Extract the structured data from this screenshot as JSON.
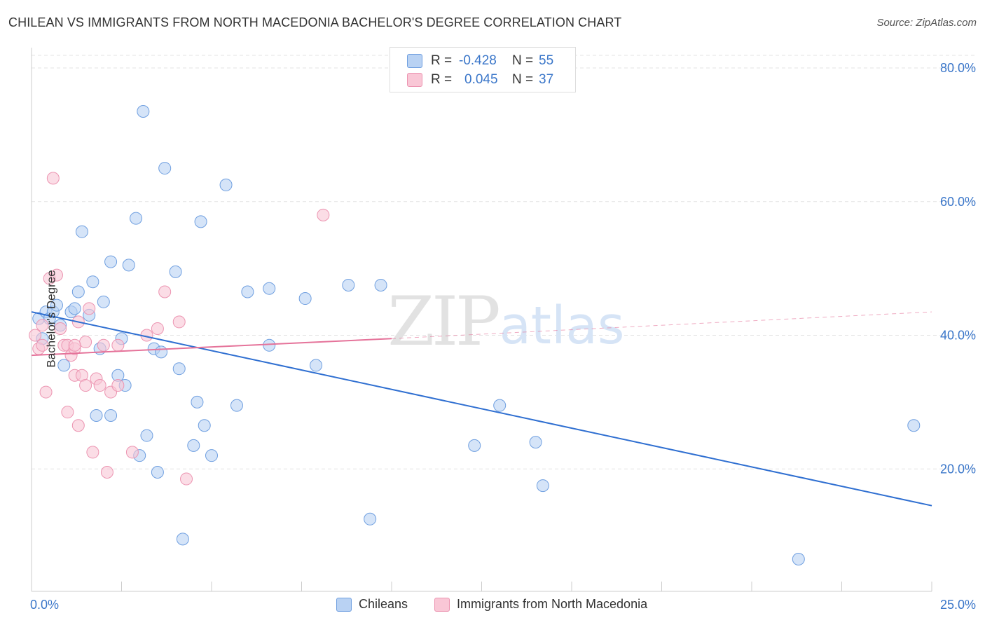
{
  "header": {
    "title": "CHILEAN VS IMMIGRANTS FROM NORTH MACEDONIA BACHELOR'S DEGREE CORRELATION CHART",
    "source": "Source: ZipAtlas.com"
  },
  "watermark": {
    "zip": "ZIP",
    "atlas": "atlas"
  },
  "legend": {
    "rows": [
      {
        "r_label": "R =",
        "r_value": "-0.428",
        "n_label": "N =",
        "n_value": "55",
        "fill": "#b9d2f3",
        "stroke": "#6f9fe0"
      },
      {
        "r_label": "R =",
        "r_value": "0.045",
        "n_label": "N =",
        "n_value": "37",
        "fill": "#f9c7d6",
        "stroke": "#ec94b1"
      }
    ]
  },
  "chart_data": {
    "type": "scatter",
    "title": "CHILEAN VS IMMIGRANTS FROM NORTH MACEDONIA BACHELOR'S DEGREE CORRELATION CHART",
    "xlabel": "",
    "ylabel": "Bachelor's Degree",
    "xlim": [
      0,
      25
    ],
    "ylim": [
      0,
      82
    ],
    "x_tick_labels": [
      "0.0%",
      "25.0%"
    ],
    "y_ticks": [
      20,
      40,
      60,
      80
    ],
    "y_tick_labels": [
      "20.0%",
      "40.0%",
      "60.0%",
      "80.0%"
    ],
    "grid": true,
    "legend_position": "top-center",
    "series": [
      {
        "name": "Chileans",
        "color": "#6f9fe0",
        "fill": "#b9d2f3",
        "points": [
          [
            0.2,
            42.5
          ],
          [
            0.3,
            39.5
          ],
          [
            0.4,
            43.5
          ],
          [
            0.5,
            42.5
          ],
          [
            0.6,
            43.5
          ],
          [
            0.7,
            44.5
          ],
          [
            0.8,
            41.5
          ],
          [
            0.9,
            35.5
          ],
          [
            1.1,
            43.5
          ],
          [
            1.2,
            44
          ],
          [
            1.3,
            46.5
          ],
          [
            1.4,
            55.5
          ],
          [
            1.6,
            43
          ],
          [
            1.7,
            48
          ],
          [
            1.8,
            28
          ],
          [
            1.9,
            38
          ],
          [
            2.0,
            45
          ],
          [
            2.2,
            51
          ],
          [
            2.2,
            28
          ],
          [
            2.4,
            34
          ],
          [
            2.5,
            39.5
          ],
          [
            2.6,
            32.5
          ],
          [
            2.7,
            50.5
          ],
          [
            2.9,
            57.5
          ],
          [
            3.0,
            22
          ],
          [
            3.1,
            73.5
          ],
          [
            3.2,
            25
          ],
          [
            3.4,
            38
          ],
          [
            3.5,
            19.5
          ],
          [
            3.6,
            37.5
          ],
          [
            3.7,
            65
          ],
          [
            4.0,
            49.5
          ],
          [
            4.1,
            35
          ],
          [
            4.2,
            9.5
          ],
          [
            4.5,
            23.5
          ],
          [
            4.6,
            30
          ],
          [
            4.7,
            57
          ],
          [
            4.8,
            26.5
          ],
          [
            5.0,
            22
          ],
          [
            5.4,
            62.5
          ],
          [
            5.7,
            29.5
          ],
          [
            6.0,
            46.5
          ],
          [
            6.6,
            47
          ],
          [
            6.6,
            38.5
          ],
          [
            7.6,
            45.5
          ],
          [
            7.9,
            35.5
          ],
          [
            8.8,
            47.5
          ],
          [
            9.4,
            12.5
          ],
          [
            9.7,
            47.5
          ],
          [
            12.3,
            23.5
          ],
          [
            13.0,
            29.5
          ],
          [
            14.0,
            24
          ],
          [
            14.2,
            17.5
          ],
          [
            21.3,
            6.5
          ],
          [
            24.5,
            26.5
          ]
        ],
        "trend": {
          "x": [
            0,
            25
          ],
          "y": [
            43.5,
            14.5
          ],
          "style": "solid"
        }
      },
      {
        "name": "Immigrants from North Macedonia",
        "color": "#ec94b1",
        "fill": "#f9c7d6",
        "points": [
          [
            0.1,
            40
          ],
          [
            0.2,
            38
          ],
          [
            0.3,
            41.5
          ],
          [
            0.4,
            31.5
          ],
          [
            0.5,
            48.5
          ],
          [
            0.6,
            63.5
          ],
          [
            0.7,
            49
          ],
          [
            0.8,
            41
          ],
          [
            0.9,
            38.5
          ],
          [
            1.0,
            28.5
          ],
          [
            1.0,
            38.5
          ],
          [
            1.1,
            37
          ],
          [
            1.2,
            38
          ],
          [
            1.2,
            34
          ],
          [
            1.3,
            26.5
          ],
          [
            1.3,
            42
          ],
          [
            1.4,
            34
          ],
          [
            1.5,
            32.5
          ],
          [
            1.5,
            39
          ],
          [
            1.6,
            44
          ],
          [
            1.7,
            22.5
          ],
          [
            1.8,
            33.5
          ],
          [
            1.9,
            32.5
          ],
          [
            2.0,
            38.5
          ],
          [
            2.1,
            19.5
          ],
          [
            2.2,
            31.5
          ],
          [
            2.4,
            32.5
          ],
          [
            2.8,
            22.5
          ],
          [
            3.2,
            40
          ],
          [
            3.5,
            41
          ],
          [
            3.7,
            46.5
          ],
          [
            4.1,
            42
          ],
          [
            4.3,
            18.5
          ],
          [
            8.1,
            58
          ],
          [
            0.3,
            38.5
          ],
          [
            1.2,
            38.5
          ],
          [
            2.4,
            38.5
          ]
        ],
        "trend": {
          "x": [
            0,
            10
          ],
          "y": [
            37,
            39.5
          ],
          "style": "solid",
          "extension": {
            "x": [
              10,
              25
            ],
            "y": [
              39.5,
              43.5
            ],
            "style": "dashed"
          }
        }
      }
    ]
  },
  "bottom_legend": {
    "items": [
      {
        "label": "Chileans",
        "fill": "#b9d2f3",
        "stroke": "#6f9fe0"
      },
      {
        "label": "Immigrants from North Macedonia",
        "fill": "#f9c7d6",
        "stroke": "#ec94b1"
      }
    ]
  },
  "colors": {
    "axis_label": "#3a76c9",
    "grid": "#e3e3e3",
    "blue_line": "#2f6fd1",
    "pink_line": "#e5739a"
  }
}
